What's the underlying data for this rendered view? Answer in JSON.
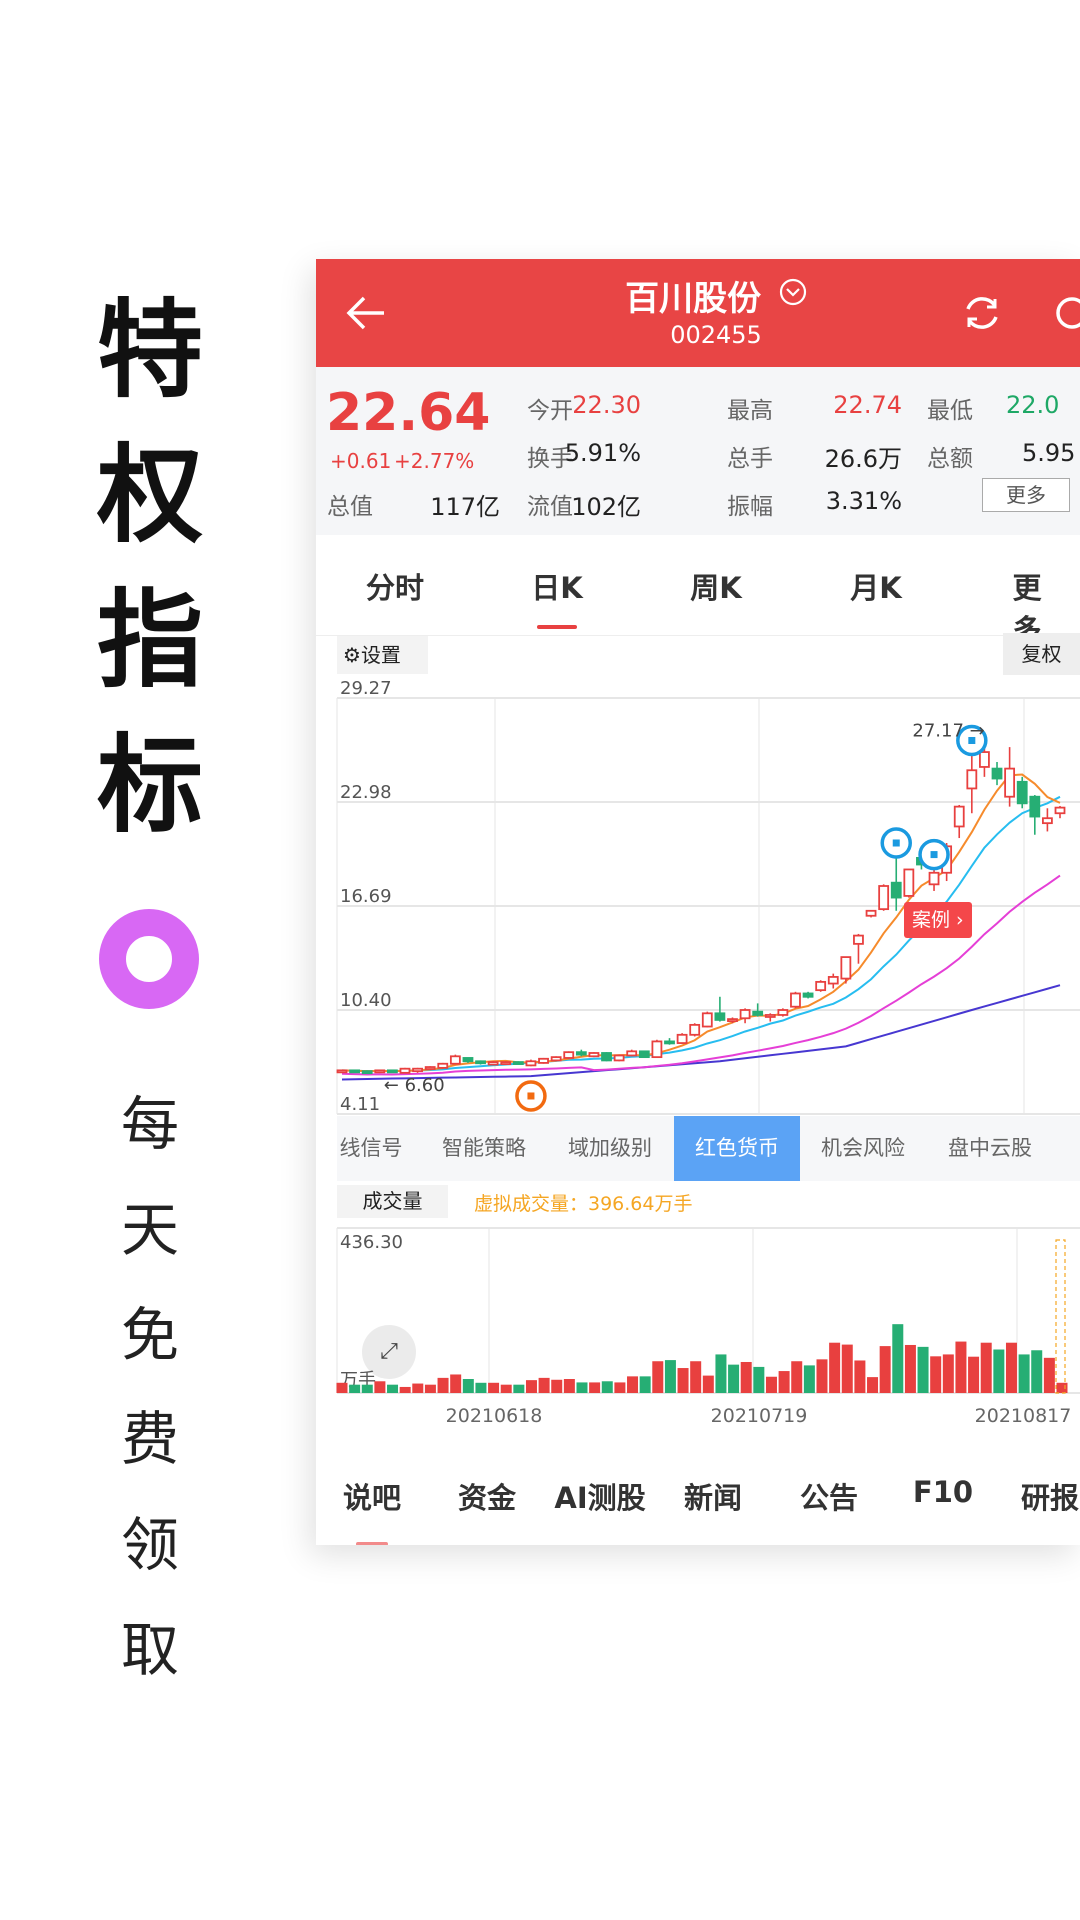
{
  "promo": {
    "headline_chars": [
      "特",
      "权",
      "指",
      "标"
    ],
    "sub_chars": [
      "每",
      "天",
      "免",
      "费",
      "领",
      "取"
    ],
    "ring_color": "#d868f4"
  },
  "header": {
    "title": "百川股份",
    "code": "002455",
    "back_icon": "arrow-left-icon",
    "refresh_icon": "refresh-icon",
    "search_icon": "search-icon",
    "color": "#e84545"
  },
  "quote": {
    "price": "22.64",
    "change": "+0.61",
    "change_pct": "+2.77%",
    "fields": [
      {
        "label": "今开",
        "value": "22.30",
        "tone": "up"
      },
      {
        "label": "最高",
        "value": "22.74",
        "tone": "up"
      },
      {
        "label": "最低",
        "value": "22.0",
        "tone": "down"
      },
      {
        "label": "换手",
        "value": "5.91%",
        "tone": "flat"
      },
      {
        "label": "总手",
        "value": "26.6万",
        "tone": "flat"
      },
      {
        "label": "总额",
        "value": "5.95",
        "tone": "flat"
      },
      {
        "label": "总值",
        "value": "117亿",
        "tone": "flat"
      },
      {
        "label": "流值",
        "value": "102亿",
        "tone": "flat"
      },
      {
        "label": "振幅",
        "value": "3.31%",
        "tone": "flat"
      }
    ],
    "more_label": "更多"
  },
  "period_tabs": [
    {
      "label": "分时",
      "active": false
    },
    {
      "label": "日K",
      "active": true
    },
    {
      "label": "周K",
      "active": false
    },
    {
      "label": "月K",
      "active": false
    },
    {
      "label": "更多",
      "active": false
    }
  ],
  "chart_tools": {
    "settings_label": "设置",
    "adjust_label": "复权"
  },
  "indicator_tabs": [
    {
      "label": "线信号",
      "active": false
    },
    {
      "label": "智能策略",
      "active": false
    },
    {
      "label": "域加级别",
      "active": false
    },
    {
      "label": "红色货币",
      "active": true
    },
    {
      "label": "机会风险",
      "active": false
    },
    {
      "label": "盘中云股",
      "active": false
    }
  ],
  "volume_header": {
    "label": "成交量",
    "virtual_volume": "虚拟成交量：396.64万手"
  },
  "case_badge": "案例 ›",
  "colors": {
    "up": "#e8403f",
    "down": "#26ae74",
    "ma5": "#f68b2c",
    "ma10": "#27bdf0",
    "ma20": "#e53fd6",
    "ma60": "#4737d1",
    "marker_blue": "#1a9ae0",
    "marker_orange": "#f26a10",
    "active_tab": "#5ba3f5"
  },
  "chart_data": [
    {
      "type": "candlestick",
      "y_ticks": [
        "29.27",
        "22.98",
        "16.69",
        "10.40",
        "4.11"
      ],
      "ylim": [
        4.11,
        29.27
      ],
      "grid": true,
      "high_label": "27.17",
      "low_label": "6.60",
      "candles": [
        [
          6.7,
          6.8,
          6.6,
          6.75
        ],
        [
          6.75,
          6.8,
          6.65,
          6.7
        ],
        [
          6.7,
          6.75,
          6.6,
          6.65
        ],
        [
          6.65,
          6.8,
          6.6,
          6.75
        ],
        [
          6.75,
          6.8,
          6.6,
          6.65
        ],
        [
          6.6,
          6.9,
          6.6,
          6.85
        ],
        [
          6.7,
          6.9,
          6.6,
          6.85
        ],
        [
          6.85,
          7.0,
          6.8,
          6.95
        ],
        [
          6.9,
          7.2,
          6.85,
          7.15
        ],
        [
          7.15,
          7.7,
          7.1,
          7.6
        ],
        [
          7.5,
          7.5,
          7.2,
          7.3
        ],
        [
          7.3,
          7.35,
          7.1,
          7.2
        ],
        [
          7.1,
          7.3,
          7.05,
          7.25
        ],
        [
          7.15,
          7.3,
          7.1,
          7.25
        ],
        [
          7.25,
          7.3,
          7.1,
          7.15
        ],
        [
          7.05,
          7.4,
          7.0,
          7.3
        ],
        [
          7.2,
          7.5,
          7.15,
          7.45
        ],
        [
          7.35,
          7.6,
          7.3,
          7.55
        ],
        [
          7.5,
          7.9,
          7.45,
          7.85
        ],
        [
          7.85,
          8.0,
          7.6,
          7.7
        ],
        [
          7.6,
          7.85,
          7.55,
          7.8
        ],
        [
          7.8,
          7.85,
          7.3,
          7.35
        ],
        [
          7.35,
          7.7,
          7.3,
          7.65
        ],
        [
          7.65,
          8.0,
          7.6,
          7.9
        ],
        [
          7.9,
          7.95,
          7.5,
          7.55
        ],
        [
          7.55,
          8.6,
          7.5,
          8.5
        ],
        [
          8.5,
          8.7,
          8.3,
          8.4
        ],
        [
          8.4,
          9.0,
          8.35,
          8.9
        ],
        [
          8.9,
          9.6,
          8.8,
          9.5
        ],
        [
          9.4,
          10.3,
          9.35,
          10.2
        ],
        [
          10.2,
          11.2,
          9.7,
          9.8
        ],
        [
          9.8,
          9.95,
          9.6,
          9.85
        ],
        [
          9.9,
          10.5,
          9.6,
          10.4
        ],
        [
          10.3,
          10.8,
          10.0,
          10.1
        ],
        [
          10.0,
          10.2,
          9.7,
          10.1
        ],
        [
          10.1,
          10.5,
          10.0,
          10.4
        ],
        [
          10.6,
          11.5,
          10.5,
          11.4
        ],
        [
          11.4,
          11.5,
          11.1,
          11.2
        ],
        [
          11.6,
          12.2,
          11.5,
          12.1
        ],
        [
          12.0,
          12.6,
          11.7,
          12.4
        ],
        [
          12.3,
          13.6,
          12.0,
          13.6
        ],
        [
          14.4,
          15.0,
          13.2,
          14.9
        ],
        [
          16.1,
          16.4,
          16.0,
          16.4
        ],
        [
          16.5,
          18.0,
          16.4,
          17.9
        ],
        [
          18.1,
          19.9,
          16.4,
          17.2
        ],
        [
          17.3,
          18.9,
          17.2,
          18.9
        ],
        [
          19.6,
          20.2,
          18.9,
          19.2
        ],
        [
          18.0,
          19.9,
          17.6,
          18.7
        ],
        [
          18.7,
          20.5,
          18.2,
          20.3
        ],
        [
          21.5,
          22.8,
          20.8,
          22.7
        ],
        [
          23.8,
          26.2,
          22.3,
          24.9
        ],
        [
          25.1,
          27.17,
          24.5,
          26.0
        ],
        [
          25.0,
          25.4,
          24.0,
          24.4
        ],
        [
          23.3,
          26.3,
          22.7,
          25.0
        ],
        [
          24.2,
          24.5,
          22.6,
          22.9
        ],
        [
          23.3,
          23.4,
          21.0,
          22.1
        ],
        [
          21.7,
          22.6,
          21.2,
          22.0
        ],
        [
          22.3,
          22.74,
          22.0,
          22.64
        ]
      ],
      "ma60_points": [
        [
          0,
          6.2
        ],
        [
          15,
          6.4
        ],
        [
          30,
          7.3
        ],
        [
          40,
          8.2
        ],
        [
          50,
          10.4
        ],
        [
          57,
          11.9
        ]
      ],
      "signal_markers": [
        {
          "index": 15,
          "price": 5.2,
          "color": "orange"
        },
        {
          "index": 44,
          "price": 20.5,
          "color": "blue"
        },
        {
          "index": 47,
          "price": 19.8,
          "color": "blue"
        },
        {
          "index": 50,
          "price": 26.7,
          "color": "blue"
        }
      ]
    },
    {
      "type": "bar",
      "y_max_label": "436.30",
      "unit": "万手",
      "ylim": [
        0,
        436.3
      ],
      "x_tick_labels": [
        "20210618",
        "20210719",
        "20210817"
      ],
      "volumes": [
        [
          27,
          1
        ],
        [
          22,
          0
        ],
        [
          22,
          0
        ],
        [
          31,
          1
        ],
        [
          22,
          0
        ],
        [
          16,
          1
        ],
        [
          25,
          1
        ],
        [
          22,
          1
        ],
        [
          40,
          1
        ],
        [
          49,
          1
        ],
        [
          37,
          0
        ],
        [
          27,
          0
        ],
        [
          27,
          1
        ],
        [
          22,
          1
        ],
        [
          22,
          0
        ],
        [
          34,
          1
        ],
        [
          40,
          1
        ],
        [
          35,
          1
        ],
        [
          37,
          1
        ],
        [
          28,
          0
        ],
        [
          28,
          1
        ],
        [
          31,
          0
        ],
        [
          28,
          1
        ],
        [
          44,
          1
        ],
        [
          44,
          0
        ],
        [
          84,
          1
        ],
        [
          87,
          0
        ],
        [
          66,
          1
        ],
        [
          84,
          1
        ],
        [
          46,
          1
        ],
        [
          102,
          0
        ],
        [
          75,
          0
        ],
        [
          82,
          1
        ],
        [
          69,
          0
        ],
        [
          43,
          1
        ],
        [
          58,
          1
        ],
        [
          84,
          1
        ],
        [
          73,
          0
        ],
        [
          89,
          1
        ],
        [
          133,
          1
        ],
        [
          128,
          1
        ],
        [
          86,
          1
        ],
        [
          42,
          1
        ],
        [
          124,
          1
        ],
        [
          182,
          0
        ],
        [
          127,
          1
        ],
        [
          122,
          0
        ],
        [
          97,
          1
        ],
        [
          102,
          1
        ],
        [
          136,
          1
        ],
        [
          96,
          1
        ],
        [
          133,
          1
        ],
        [
          115,
          0
        ],
        [
          133,
          1
        ],
        [
          102,
          0
        ],
        [
          113,
          0
        ],
        [
          93,
          1
        ],
        [
          27,
          1
        ]
      ]
    }
  ],
  "bottom_tabs": [
    {
      "label": "说吧",
      "active": true
    },
    {
      "label": "资金",
      "active": false
    },
    {
      "label": "AI测股",
      "active": false
    },
    {
      "label": "新闻",
      "active": false
    },
    {
      "label": "公告",
      "active": false
    },
    {
      "label": "F10",
      "active": false
    },
    {
      "label": "研报",
      "active": false
    }
  ]
}
